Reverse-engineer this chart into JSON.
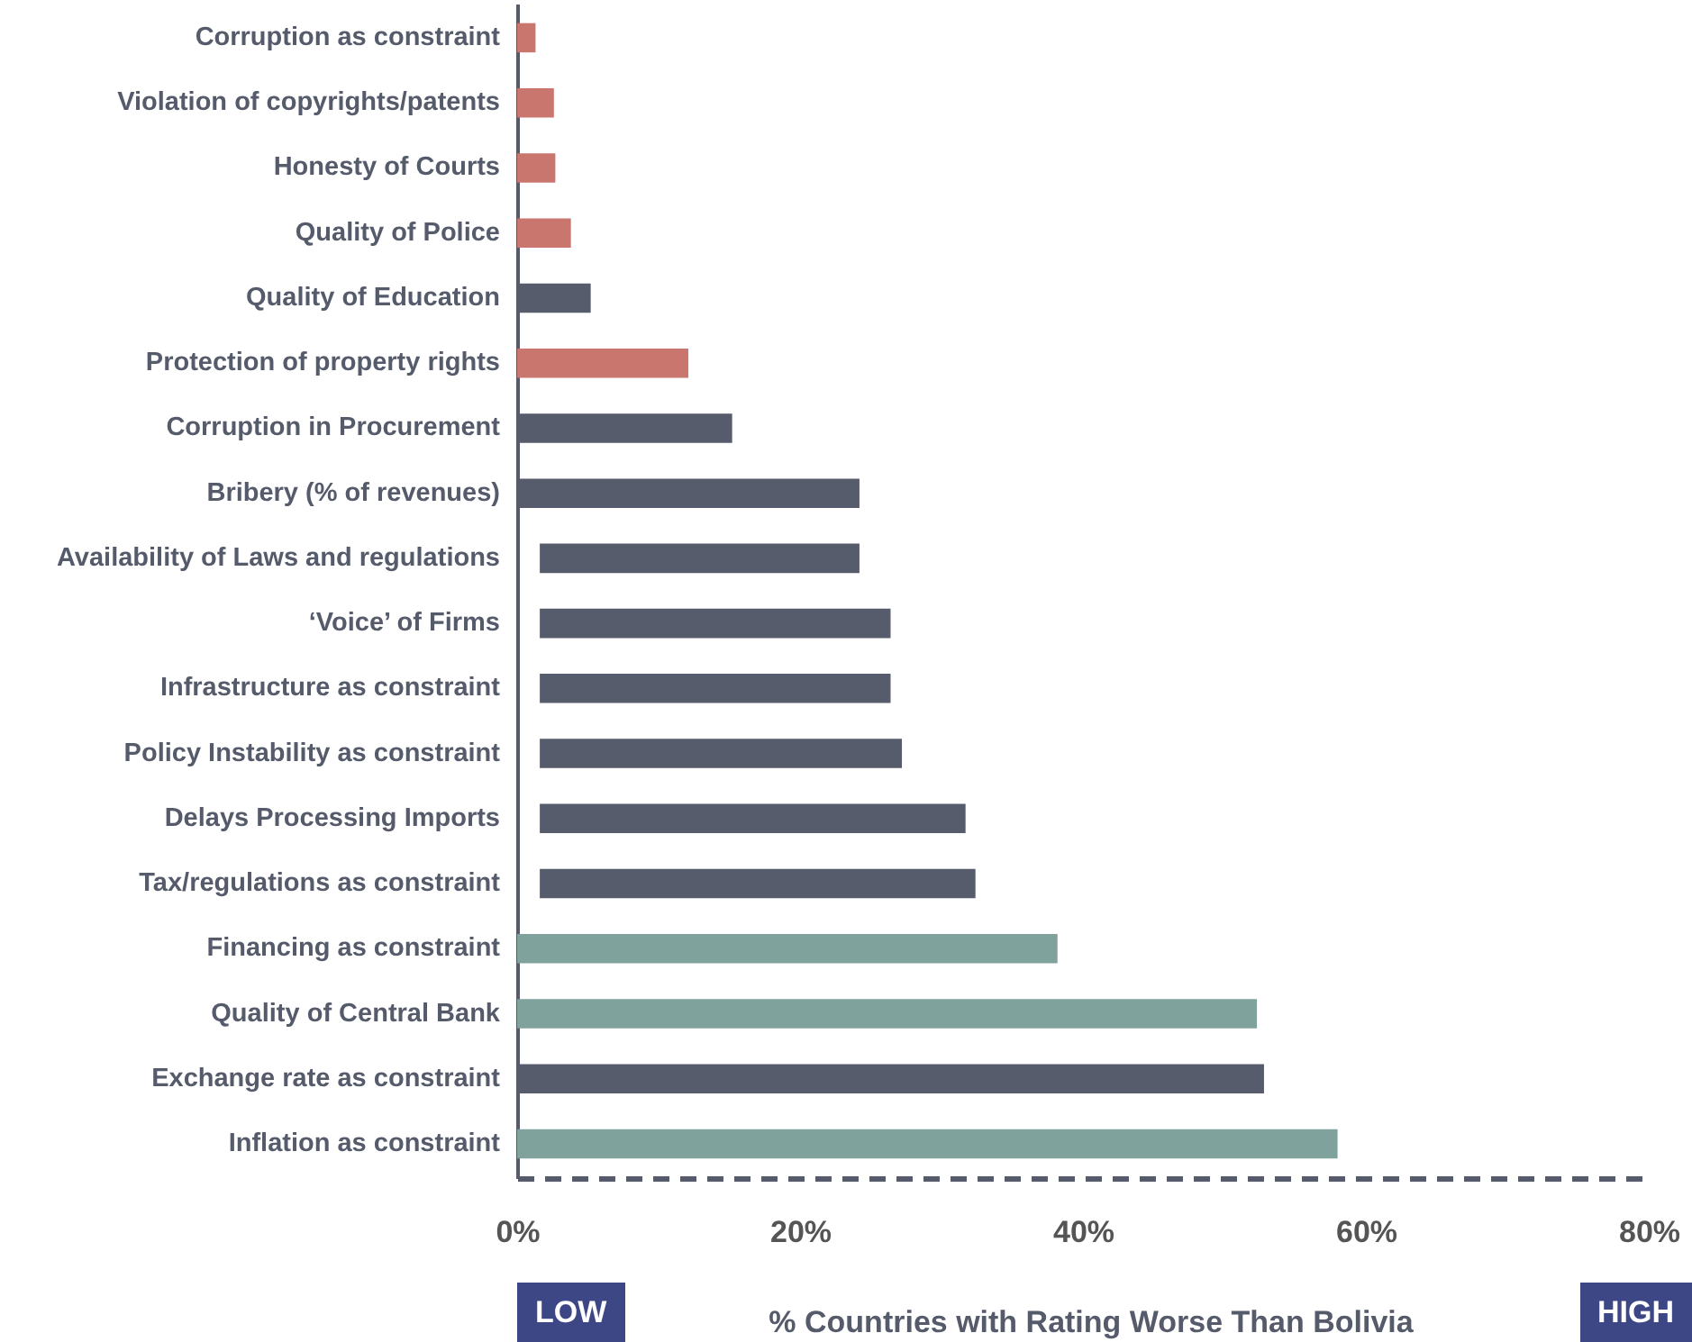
{
  "chart_data": {
    "type": "bar",
    "orientation": "horizontal",
    "categories": [
      "Corruption as constraint",
      "Violation of copyrights/patents",
      "Honesty of Courts",
      "Quality of Police",
      "Quality of Education",
      "Protection of property rights",
      "Corruption in Procurement",
      "Bribery (% of revenues)",
      "Availability of Laws and regulations",
      "‘Voice’ of Firms",
      "Infrastructure as constraint",
      "Policy Instability as constraint",
      "Delays Processing Imports",
      "Tax/regulations as constraint",
      "Financing as constraint",
      "Quality of Central Bank",
      "Exchange rate as constraint",
      "Inflation as constraint"
    ],
    "values": [
      1.3,
      2.6,
      2.7,
      3.8,
      5.2,
      12.1,
      15.2,
      24.2,
      22.6,
      24.8,
      24.8,
      25.6,
      30.1,
      30.8,
      38.2,
      52.3,
      52.8,
      58.0
    ],
    "base": [
      0,
      0,
      0,
      0,
      0,
      0,
      0,
      0,
      1.6,
      1.6,
      1.6,
      1.6,
      1.6,
      1.6,
      0,
      0,
      0,
      0
    ],
    "colors": [
      "#c9776e",
      "#c9776e",
      "#c9776e",
      "#c9776e",
      "#565c6c",
      "#c9776e",
      "#565c6c",
      "#565c6c",
      "#565c6c",
      "#565c6c",
      "#565c6c",
      "#565c6c",
      "#565c6c",
      "#565c6c",
      "#7fa39c",
      "#7fa39c",
      "#565c6c",
      "#7fa39c"
    ],
    "xlim": [
      0,
      80
    ],
    "xticks": [
      {
        "value": 0,
        "label": "0%"
      },
      {
        "value": 20,
        "label": "20%"
      },
      {
        "value": 40,
        "label": "40%"
      },
      {
        "value": 60,
        "label": "60%"
      },
      {
        "value": 80,
        "label": "80%"
      }
    ],
    "xlabel": "% Countries with Rating Worse Than Bolivia",
    "annotations": [
      "LOW",
      "HIGH"
    ]
  }
}
